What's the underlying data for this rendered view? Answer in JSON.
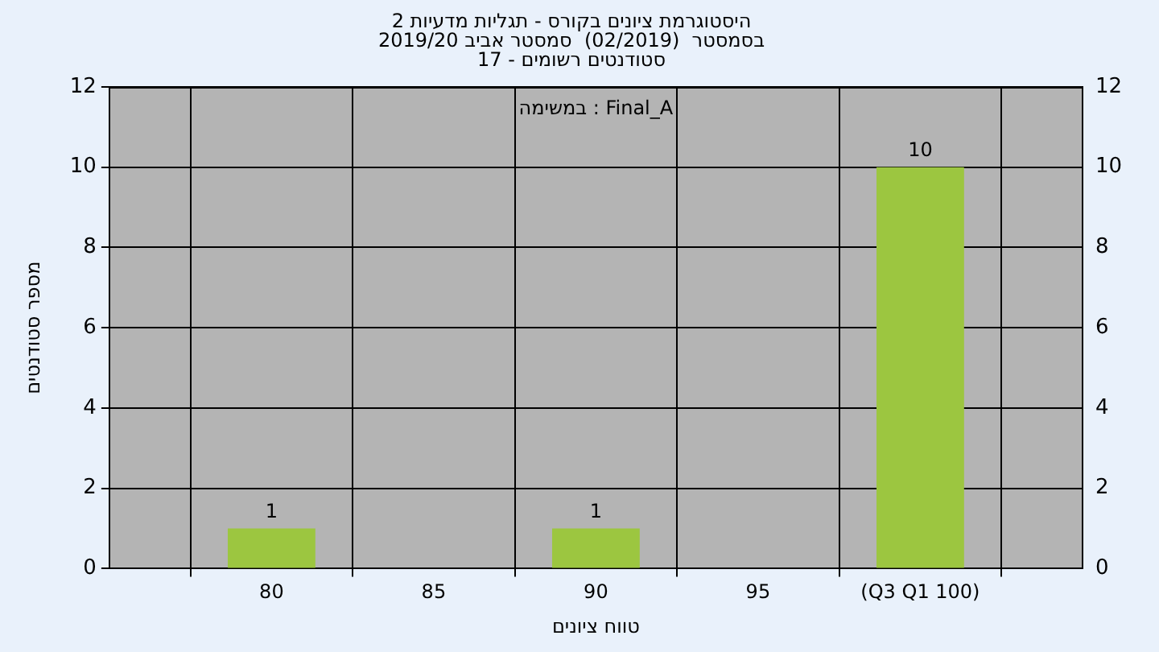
{
  "chart_data": {
    "type": "bar",
    "title": "היסטוגרמת ציונים בקורס - תגליות מדעיות 2",
    "subtitle": "בסמסטר  (02/2019)  סמסטר אביב 2019/20\nסטודנטים רשומים - 17",
    "xlabel": "טווח ציונים",
    "ylabel": "מספר סטודנטים",
    "annotations": [
      "במשימה : Final_A"
    ],
    "categories": [
      "80",
      "85",
      "90",
      "95",
      "(Q3 Q1 100)"
    ],
    "values": [
      1,
      0,
      1,
      0,
      10
    ],
    "value_labels": [
      "1",
      null,
      "1",
      null,
      "10"
    ],
    "color": "#9cc640",
    "ylim": [
      0,
      12
    ],
    "yticks": [
      0,
      2,
      4,
      6,
      8,
      10,
      12
    ],
    "y2lim": [
      0,
      12
    ],
    "y2ticks": [
      0,
      2,
      4,
      6,
      8,
      10,
      12
    ],
    "grid": true,
    "legend": false
  }
}
